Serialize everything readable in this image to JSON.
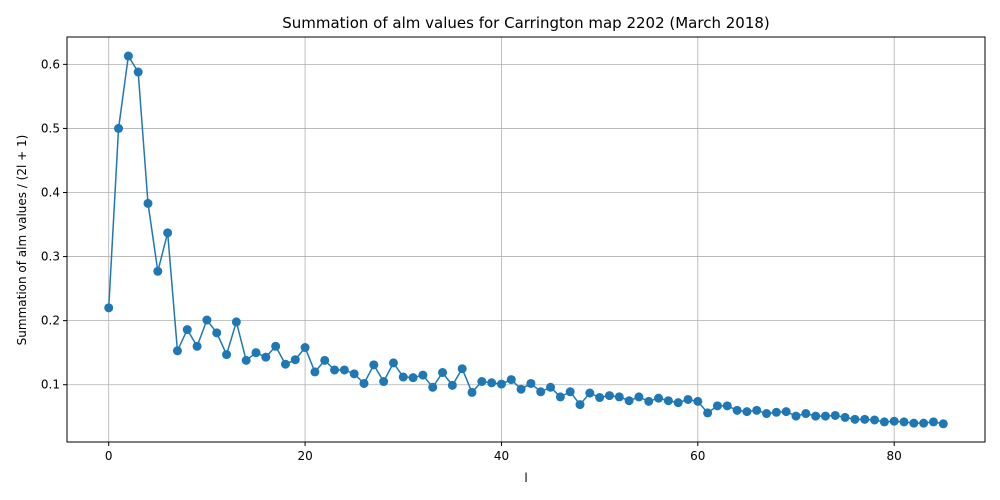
{
  "chart_data": {
    "type": "line",
    "title": "Summation of alm values for Carrington map 2202 (March 2018)",
    "xlabel": "l",
    "ylabel": "Summation of alm values / (2l + 1)",
    "xlim": [
      -4.25,
      89.25
    ],
    "ylim": [
      0.0106,
      0.6427
    ],
    "xticks": [
      0,
      20,
      40,
      60,
      80
    ],
    "yticks": [
      0.1,
      0.2,
      0.3,
      0.4,
      0.5,
      0.6
    ],
    "grid": true,
    "markers": true,
    "color": "#1f77b4",
    "x": [
      0,
      1,
      2,
      3,
      4,
      5,
      6,
      7,
      8,
      9,
      10,
      11,
      12,
      13,
      14,
      15,
      16,
      17,
      18,
      19,
      20,
      21,
      22,
      23,
      24,
      25,
      26,
      27,
      28,
      29,
      30,
      31,
      32,
      33,
      34,
      35,
      36,
      37,
      38,
      39,
      40,
      41,
      42,
      43,
      44,
      45,
      46,
      47,
      48,
      49,
      50,
      51,
      52,
      53,
      54,
      55,
      56,
      57,
      58,
      59,
      60,
      61,
      62,
      63,
      64,
      65,
      66,
      67,
      68,
      69,
      70,
      71,
      72,
      73,
      74,
      75,
      76,
      77,
      78,
      79,
      80,
      81,
      82,
      83,
      84,
      85
    ],
    "values": [
      0.22,
      0.5,
      0.613,
      0.588,
      0.383,
      0.277,
      0.337,
      0.153,
      0.186,
      0.16,
      0.201,
      0.181,
      0.147,
      0.198,
      0.138,
      0.15,
      0.143,
      0.16,
      0.132,
      0.139,
      0.158,
      0.12,
      0.138,
      0.123,
      0.123,
      0.117,
      0.102,
      0.131,
      0.105,
      0.134,
      0.112,
      0.111,
      0.115,
      0.096,
      0.119,
      0.099,
      0.125,
      0.088,
      0.105,
      0.103,
      0.101,
      0.108,
      0.093,
      0.102,
      0.089,
      0.096,
      0.081,
      0.089,
      0.069,
      0.087,
      0.08,
      0.083,
      0.081,
      0.075,
      0.081,
      0.074,
      0.079,
      0.075,
      0.072,
      0.077,
      0.074,
      0.056,
      0.067,
      0.067,
      0.06,
      0.058,
      0.06,
      0.055,
      0.057,
      0.058,
      0.051,
      0.055,
      0.051,
      0.051,
      0.052,
      0.049,
      0.046,
      0.046,
      0.045,
      0.042,
      0.043,
      0.042,
      0.04,
      0.04,
      0.042,
      0.039
    ]
  }
}
